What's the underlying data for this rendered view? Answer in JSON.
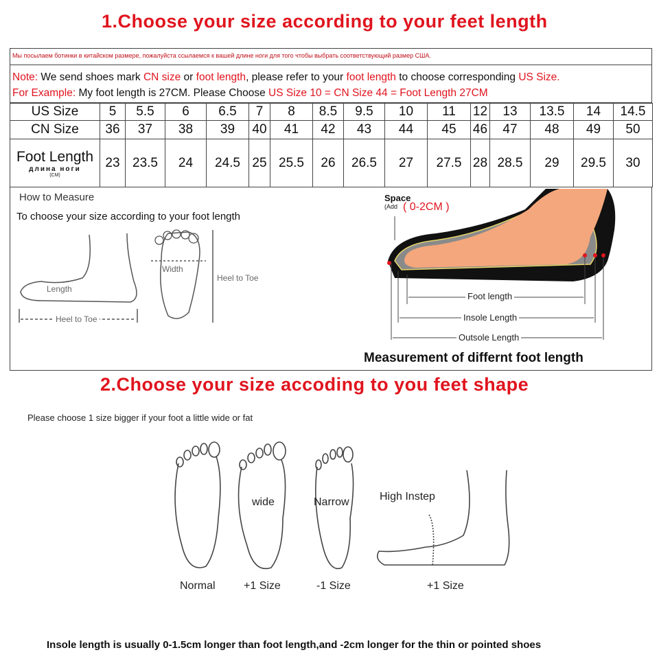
{
  "section1": {
    "title": "1.Choose your size according to your feet length"
  },
  "russian_note": "Мы посылаем ботинки в китайском размере, пожалуйста ссылаемся к вашей длине ноги для того чтобы выбрать соответствующий размер США.",
  "note": {
    "label": "Note:",
    "t1": " We send shoes mark ",
    "r1": "CN size",
    "t2": " or ",
    "r2": "foot length",
    "t3": ", please refer to your ",
    "r3": "foot length",
    "t4": " to choose corresponding ",
    "r4": "US Size."
  },
  "example": {
    "label": "For Example:",
    "t1": " My foot length is 27CM. Please Choose ",
    "r1": "US Size 10 = CN Size 44 = Foot Length 27CM"
  },
  "size_table": {
    "rows": [
      {
        "label": "US Size",
        "values": [
          "5",
          "5.5",
          "6",
          "6.5",
          "7",
          "8",
          "8.5",
          "9.5",
          "10",
          "11",
          "12",
          "13",
          "13.5",
          "14",
          "14.5"
        ]
      },
      {
        "label": "CN Size",
        "values": [
          "36",
          "37",
          "38",
          "39",
          "40",
          "41",
          "42",
          "43",
          "44",
          "45",
          "46",
          "47",
          "48",
          "49",
          "50"
        ]
      },
      {
        "label": "Foot Length",
        "sublabel": "длина ноги",
        "unit": "(CM)",
        "values": [
          "23",
          "23.5",
          "24",
          "24.5",
          "25",
          "25.5",
          "26",
          "26.5",
          "27",
          "27.5",
          "28",
          "28.5",
          "29",
          "29.5",
          "30"
        ]
      }
    ]
  },
  "measure": {
    "heading": "How to Measure",
    "subheading": "To choose your size according to your foot length",
    "side_length": "Length",
    "side_heel_to_toe": "Heel to Toe",
    "sole_width": "Width",
    "sole_heel_to_toe": "Heel to Toe",
    "space_label": "Space",
    "space_add": "(Add",
    "space_value": "( 0-2CM )",
    "foot_length": "Foot length",
    "insole_length": "Insole Length",
    "outsole_length": "Outsole Length",
    "caption": "Measurement of differnt foot length"
  },
  "section2": {
    "title": "2.Choose your size accoding to you feet shape",
    "hint": "Please choose 1 size bigger if your foot a little wide or fat",
    "shapes": [
      {
        "name": "Normal",
        "inner": ""
      },
      {
        "name": "+1 Size",
        "inner": "wide"
      },
      {
        "name": "-1 Size",
        "inner": "Narrow"
      },
      {
        "name": "+1 Size",
        "inner": "High Instep"
      }
    ],
    "footer": "Insole length is usually 0-1.5cm longer than foot length,and -2cm longer for the thin or pointed shoes"
  },
  "colors": {
    "accent_red": "#e0141e",
    "skin": "#f4a77c",
    "sole": "#111111"
  }
}
